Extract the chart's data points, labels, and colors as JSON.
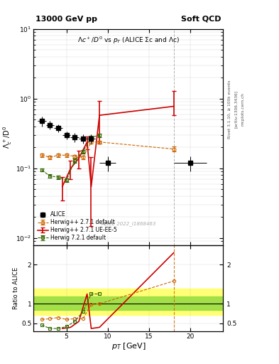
{
  "title_main": "13000 GeV pp",
  "title_right": "Soft QCD",
  "plot_title": "Λc⁺/D⁰ vs p_{T} (ALICE Σc and Λc)",
  "watermark": "ALICE 2022_I1868463",
  "rivet_label": "Rivet 3.1.10, ≥ 100k events",
  "arxiv_label": "[arXiv:1306.3436]",
  "mcplots_label": "mcplots.cern.ch",
  "xlabel": "p_{T} [GeV]",
  "ylabel_main": "Λc⁺/D⁰",
  "ylabel_ratio": "Ratio to ALICE",
  "xlim": [
    1,
    24
  ],
  "ylim_main": [
    0.008,
    10
  ],
  "ylim_ratio": [
    0.3,
    2.5
  ],
  "alice_x": [
    2.0,
    3.0,
    4.0,
    5.0,
    6.0,
    7.0,
    8.0,
    10.0,
    20.0
  ],
  "alice_y": [
    0.48,
    0.42,
    0.38,
    0.3,
    0.28,
    0.27,
    0.27,
    0.12,
    0.12
  ],
  "alice_yerr": [
    0.08,
    0.06,
    0.05,
    0.04,
    0.04,
    0.04,
    0.04,
    0.03,
    0.03
  ],
  "alice_xerr": [
    0.5,
    0.5,
    0.5,
    0.5,
    0.5,
    0.5,
    0.5,
    1.0,
    2.0
  ],
  "hw271d_x": [
    2.0,
    3.0,
    4.0,
    5.0,
    6.0,
    7.0,
    8.0,
    9.0,
    18.0
  ],
  "hw271d_y": [
    0.155,
    0.145,
    0.155,
    0.155,
    0.15,
    0.145,
    0.24,
    0.24,
    0.19
  ],
  "hw271d_yerr": [
    0.008,
    0.008,
    0.008,
    0.008,
    0.008,
    0.008,
    0.01,
    0.01,
    0.015
  ],
  "hw271d_color": "#cc6600",
  "hw271ue_x": [
    4.5,
    5.5,
    6.5,
    7.5,
    8.0,
    9.0,
    18.0
  ],
  "hw271ue_y": [
    0.055,
    0.1,
    0.14,
    0.24,
    0.055,
    0.58,
    0.78
  ],
  "hw271ue_yerr_lo": [
    0.02,
    0.03,
    0.04,
    0.05,
    0.04,
    0.35,
    0.2
  ],
  "hw271ue_yerr_hi": [
    0.02,
    0.03,
    0.04,
    0.05,
    0.09,
    0.35,
    0.5
  ],
  "hw271ue_color": "#cc0000",
  "hw721d_x": [
    2.0,
    3.0,
    4.0,
    5.0,
    6.0,
    7.0,
    8.0,
    9.0
  ],
  "hw721d_y": [
    0.095,
    0.078,
    0.075,
    0.068,
    0.13,
    0.175,
    0.28,
    0.3
  ],
  "hw721d_yerr": [
    0.005,
    0.004,
    0.004,
    0.004,
    0.008,
    0.01,
    0.014,
    0.018
  ],
  "hw721d_color": "#336600",
  "ratio_yellow_lo": 0.72,
  "ratio_yellow_hi": 1.38,
  "ratio_green_lo": 0.85,
  "ratio_green_hi": 1.18,
  "ratio_hw271d_x": [
    2.0,
    3.0,
    4.0,
    5.0,
    6.0,
    7.0,
    8.0,
    9.0,
    18.0
  ],
  "ratio_hw271d_y": [
    0.6,
    0.62,
    0.65,
    0.6,
    0.62,
    0.62,
    0.98,
    1.0,
    1.58
  ],
  "ratio_hw271ue_x": [
    4.5,
    5.5,
    6.5,
    7.5,
    8.0,
    9.0,
    18.0
  ],
  "ratio_hw271ue_y": [
    0.37,
    0.4,
    0.55,
    1.25,
    0.37,
    0.4,
    2.3
  ],
  "ratio_hw721d_x": [
    2.0,
    3.0,
    4.0,
    5.0,
    6.0,
    7.0,
    8.0,
    9.0
  ],
  "ratio_hw721d_y": [
    0.46,
    0.37,
    0.37,
    0.42,
    0.55,
    0.8,
    1.25,
    1.25
  ],
  "vline_x": 18.0,
  "bg_color": "#ffffff",
  "grid_color": "#aaaaaa"
}
